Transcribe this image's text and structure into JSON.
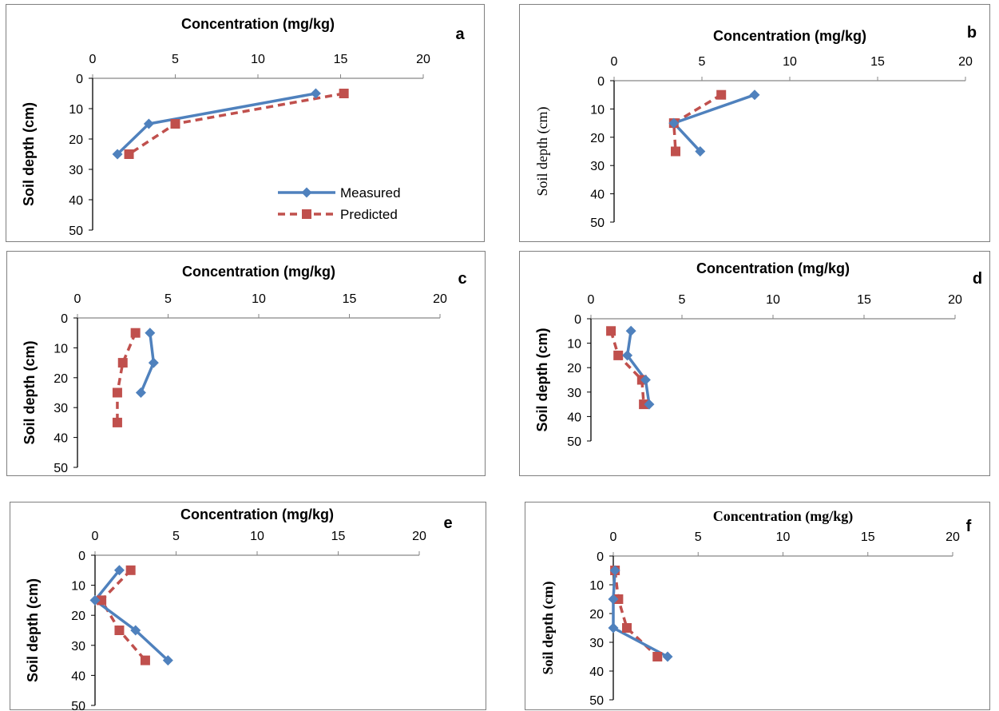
{
  "chart_data": [
    {
      "panel": "a",
      "type": "line",
      "xlabel": "Concentration (mg/kg)",
      "ylabel": "Soil depth (cm)",
      "xlim": [
        0,
        20
      ],
      "ylim": [
        0,
        50
      ],
      "xticks": [
        "0",
        "5",
        "10",
        "15",
        "20"
      ],
      "yticks": [
        "0",
        "10",
        "20",
        "30",
        "40",
        "50"
      ],
      "legend": "bottom-right",
      "series": [
        {
          "name": "Measured",
          "color": "#4f81bd",
          "marker": "diamond",
          "style": "solid",
          "points": [
            [
              13.5,
              5
            ],
            [
              3.4,
              15
            ],
            [
              1.5,
              25
            ]
          ]
        },
        {
          "name": "Predicted",
          "color": "#c0504d",
          "marker": "square",
          "style": "dashed",
          "points": [
            [
              15.2,
              5
            ],
            [
              5.0,
              15
            ],
            [
              2.2,
              25
            ]
          ]
        }
      ]
    },
    {
      "panel": "b",
      "type": "line",
      "xlabel": "Concentration (mg/kg)",
      "ylabel": "Soil depth (cm)",
      "xlim": [
        0,
        20
      ],
      "ylim": [
        0,
        50
      ],
      "xticks": [
        "0",
        "5",
        "10",
        "15",
        "20"
      ],
      "yticks": [
        "0",
        "10",
        "20",
        "30",
        "40",
        "50"
      ],
      "series": [
        {
          "color": "#4f81bd",
          "marker": "diamond",
          "style": "solid",
          "points": [
            [
              8.0,
              5
            ],
            [
              3.4,
              15
            ],
            [
              4.9,
              25
            ]
          ]
        },
        {
          "color": "#c0504d",
          "marker": "square",
          "style": "dashed",
          "points": [
            [
              6.1,
              5
            ],
            [
              3.4,
              15
            ],
            [
              3.5,
              25
            ]
          ]
        }
      ]
    },
    {
      "panel": "c",
      "type": "line",
      "xlabel": "Concentration (mg/kg)",
      "ylabel": "Soil  depth (cm)",
      "xlim": [
        0,
        20
      ],
      "ylim": [
        0,
        50
      ],
      "xticks": [
        "0",
        "5",
        "10",
        "15",
        "20"
      ],
      "yticks": [
        "0",
        "10",
        "20",
        "30",
        "40",
        "50"
      ],
      "series": [
        {
          "color": "#4f81bd",
          "marker": "diamond",
          "style": "solid",
          "points": [
            [
              4.0,
              5
            ],
            [
              4.2,
              15
            ],
            [
              3.5,
              25
            ]
          ]
        },
        {
          "color": "#c0504d",
          "marker": "square",
          "style": "dashed",
          "points": [
            [
              3.2,
              5
            ],
            [
              2.5,
              15
            ],
            [
              2.2,
              25
            ],
            [
              2.2,
              35
            ]
          ]
        }
      ]
    },
    {
      "panel": "d",
      "type": "line",
      "xlabel": "Concentration (mg/kg)",
      "ylabel": "Soil  depth (cm)",
      "xlim": [
        0,
        20
      ],
      "ylim": [
        0,
        50
      ],
      "xticks": [
        "0",
        "5",
        "10",
        "15",
        "20"
      ],
      "yticks": [
        "0",
        "10",
        "20",
        "30",
        "40",
        "50"
      ],
      "series": [
        {
          "color": "#4f81bd",
          "marker": "diamond",
          "style": "solid",
          "points": [
            [
              2.2,
              5
            ],
            [
              2.0,
              15
            ],
            [
              3.0,
              25
            ],
            [
              3.2,
              35
            ]
          ]
        },
        {
          "color": "#c0504d",
          "marker": "square",
          "style": "dashed",
          "points": [
            [
              1.1,
              5
            ],
            [
              1.5,
              15
            ],
            [
              2.8,
              25
            ],
            [
              2.9,
              35
            ]
          ]
        }
      ]
    },
    {
      "panel": "e",
      "type": "line",
      "xlabel": "Concentration (mg/kg)",
      "ylabel": "Soil depth (cm)",
      "xlim": [
        0,
        20
      ],
      "ylim": [
        0,
        50
      ],
      "xticks": [
        "0",
        "5",
        "10",
        "15",
        "20"
      ],
      "yticks": [
        "0",
        "10",
        "20",
        "30",
        "40",
        "50"
      ],
      "series": [
        {
          "color": "#4f81bd",
          "marker": "diamond",
          "style": "solid",
          "points": [
            [
              1.5,
              5
            ],
            [
              0.0,
              15
            ],
            [
              2.5,
              25
            ],
            [
              4.5,
              35
            ]
          ]
        },
        {
          "color": "#c0504d",
          "marker": "square",
          "style": "dashed",
          "points": [
            [
              2.2,
              5
            ],
            [
              0.4,
              15
            ],
            [
              1.5,
              25
            ],
            [
              3.1,
              35
            ]
          ]
        }
      ]
    },
    {
      "panel": "f",
      "type": "line",
      "xlabel": "Concentration (mg/kg)",
      "ylabel": "Soil  depth (cm)",
      "xlim": [
        0,
        20
      ],
      "ylim": [
        0,
        50
      ],
      "xticks": [
        "0",
        "5",
        "10",
        "15",
        "20"
      ],
      "yticks": [
        "0",
        "10",
        "20",
        "30",
        "40",
        "50"
      ],
      "series": [
        {
          "color": "#4f81bd",
          "marker": "diamond",
          "style": "solid",
          "points": [
            [
              0.1,
              5
            ],
            [
              0.0,
              15
            ],
            [
              0.0,
              25
            ],
            [
              3.2,
              35
            ]
          ]
        },
        {
          "color": "#c0504d",
          "marker": "square",
          "style": "dashed",
          "points": [
            [
              0.1,
              5
            ],
            [
              0.3,
              15
            ],
            [
              0.8,
              25
            ],
            [
              2.6,
              35
            ]
          ]
        }
      ]
    }
  ]
}
